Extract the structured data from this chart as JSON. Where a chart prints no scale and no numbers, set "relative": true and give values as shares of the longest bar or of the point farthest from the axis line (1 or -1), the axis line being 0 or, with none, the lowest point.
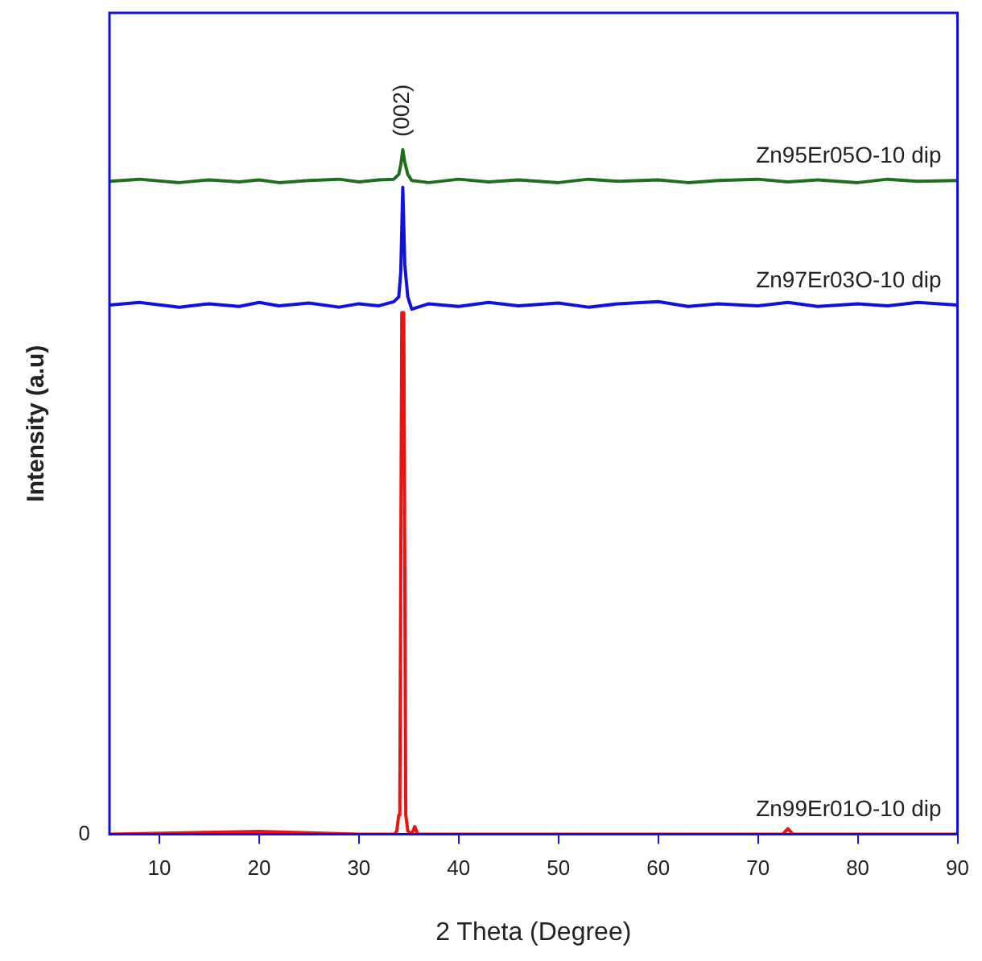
{
  "chart_data": {
    "type": "line",
    "xlabel": "2 Theta (Degree)",
    "ylabel": "Intensity (a.u)",
    "relative": true,
    "xlim": [
      5,
      90
    ],
    "xticks": [
      10,
      20,
      30,
      40,
      50,
      60,
      70,
      80,
      90
    ],
    "grid": false,
    "legend": false,
    "marker": "none",
    "line_style": "solid",
    "annotations": [
      "0",
      "(002)"
    ],
    "series": [
      {
        "name": "Zn95Er05O-10 dip",
        "color": "#1e6e1e",
        "x": [
          5,
          8,
          12,
          15,
          18,
          20,
          22,
          25,
          28,
          30,
          32,
          33.5,
          34.0,
          34.2,
          34.4,
          34.6,
          34.9,
          35.3,
          37,
          40,
          43,
          46,
          50,
          53,
          56,
          60,
          63,
          66,
          70,
          73,
          76,
          80,
          83,
          86,
          90
        ],
        "values": [
          0.954,
          0.957,
          0.952,
          0.956,
          0.953,
          0.956,
          0.952,
          0.955,
          0.957,
          0.953,
          0.956,
          0.957,
          0.964,
          0.978,
          1.0,
          0.982,
          0.964,
          0.955,
          0.952,
          0.957,
          0.953,
          0.956,
          0.952,
          0.957,
          0.954,
          0.956,
          0.952,
          0.955,
          0.957,
          0.953,
          0.956,
          0.952,
          0.957,
          0.954,
          0.955
        ]
      },
      {
        "name": "Zn97Er03O-10 dip",
        "color": "#1010e0",
        "x": [
          5,
          8,
          12,
          15,
          18,
          20,
          22,
          25,
          28,
          30,
          32,
          33.5,
          34.0,
          34.2,
          34.4,
          34.6,
          34.9,
          35.3,
          37,
          40,
          43,
          46,
          50,
          53,
          56,
          60,
          63,
          66,
          70,
          73,
          76,
          80,
          83,
          86,
          90
        ],
        "values": [
          0.773,
          0.777,
          0.77,
          0.775,
          0.771,
          0.777,
          0.772,
          0.776,
          0.77,
          0.775,
          0.772,
          0.778,
          0.785,
          0.822,
          0.945,
          0.832,
          0.785,
          0.767,
          0.775,
          0.771,
          0.777,
          0.772,
          0.776,
          0.77,
          0.775,
          0.778,
          0.771,
          0.775,
          0.772,
          0.777,
          0.771,
          0.775,
          0.772,
          0.777,
          0.773
        ]
      },
      {
        "name": "Zn99Er01O-10 dip",
        "color": "#ee1111",
        "x": [
          5,
          20,
          30,
          33.6,
          33.8,
          34.0,
          34.1,
          34.3,
          34.5,
          34.7,
          34.9,
          35.3,
          35.6,
          35.9,
          40,
          60,
          72.5,
          73,
          73.5,
          90
        ],
        "values": [
          0,
          0.004,
          0,
          0,
          0.005,
          0.028,
          0.028,
          0.762,
          0.762,
          0.028,
          0.005,
          0,
          0.011,
          0,
          0,
          0,
          0,
          0.008,
          0,
          0
        ]
      }
    ]
  }
}
